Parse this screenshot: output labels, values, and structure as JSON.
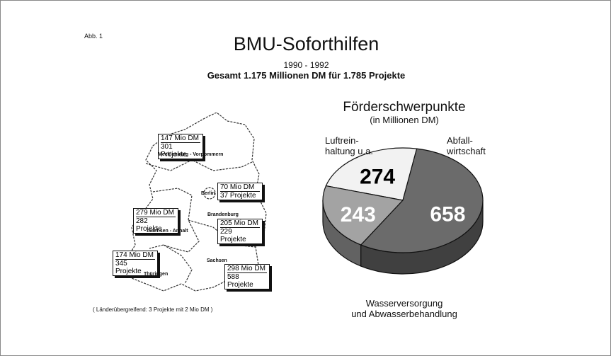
{
  "figure": {
    "label": "Abb. 1",
    "title": "BMU-Soforthilfen",
    "period": "1990 - 1992",
    "summary": "Gesamt 1.175 Millionen DM für 1.785 Projekte",
    "footnote": "( Länderübergreifend: 3 Projekte mit 2 Mio DM )"
  },
  "map": {
    "regions": [
      {
        "name": "Mecklenburg - Vorpommern",
        "funding": "147 Mio DM",
        "projects": "301 Projekte"
      },
      {
        "name": "Berlin",
        "funding": "70 Mio DM",
        "projects": "37 Projekte"
      },
      {
        "name": "Brandenburg",
        "funding": "205 Mio DM",
        "projects": "229 Projekte"
      },
      {
        "name": "Sachsen - Anhalt",
        "funding": "279 Mio DM",
        "projects": "282 Projekte"
      },
      {
        "name": "Thüringen",
        "funding": "174 Mio DM",
        "projects": "345 Projekte"
      },
      {
        "name": "Sachsen",
        "funding": "298 Mio DM",
        "projects": "588 Projekte"
      }
    ]
  },
  "chart_data": {
    "type": "pie",
    "title": "Förderschwerpunkte",
    "subtitle": "(in Millionen DM)",
    "categories": [
      "Luftrein-\nhaltung u.a.",
      "Abfall-\nwirtschaft",
      "Wasserversorgung\nund Abwasserbehandlung"
    ],
    "values": [
      274,
      243,
      658
    ],
    "colors": [
      "#f2f2f2",
      "#a3a3a3",
      "#6b6b6b"
    ],
    "label_colors": [
      "#000000",
      "#ffffff",
      "#ffffff"
    ]
  }
}
